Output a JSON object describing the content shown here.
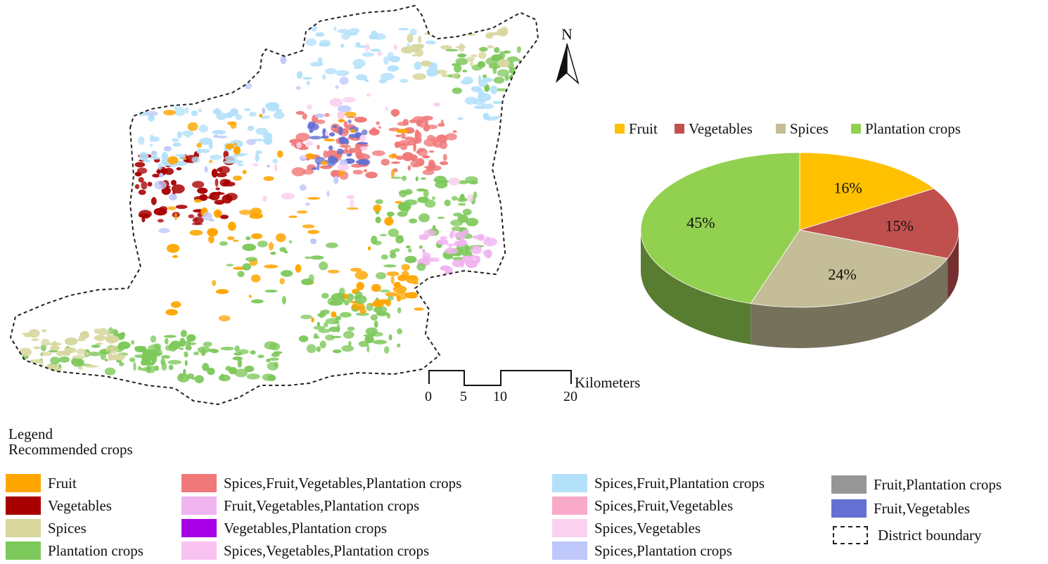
{
  "map": {
    "north_label": "N",
    "scale_unit": "Kilometers",
    "scale_ticks": [
      "0",
      "5",
      "10",
      "20"
    ]
  },
  "chart_data": {
    "type": "pie",
    "legend": [
      "Fruit",
      "Vegetables",
      "Spices",
      "Plantation crops"
    ],
    "legend_placement": "top",
    "slices": [
      {
        "label": "Fruit",
        "value": 16,
        "text": "16%",
        "color": "#ffc000"
      },
      {
        "label": "Vegetables",
        "value": 15,
        "text": "15%",
        "color": "#c0504d"
      },
      {
        "label": "Spices",
        "value": 24,
        "text": "24%",
        "color": "#c4bd97"
      },
      {
        "label": "Plantation crops",
        "value": 45,
        "text": "45%",
        "color": "#92d050"
      }
    ]
  },
  "legend": {
    "title": "Legend",
    "subtitle": "Recommended crops",
    "items": [
      {
        "label": "Fruit",
        "color": "#ffa500"
      },
      {
        "label": "Vegetables",
        "color": "#a80000"
      },
      {
        "label": "Spices",
        "color": "#d7d79e"
      },
      {
        "label": "Plantation crops",
        "color": "#7dc85a"
      },
      {
        "label": "Spices,Fruit,Vegetables,Plantation crops",
        "color": "#f07878"
      },
      {
        "label": "Fruit,Vegetables,Plantation crops",
        "color": "#f0b4f0"
      },
      {
        "label": "Vegetables,Plantation crops",
        "color": "#a800e6"
      },
      {
        "label": "Spices,Vegetables,Plantation crops",
        "color": "#f8c3f0"
      },
      {
        "label": "Spices,Fruit,Plantation crops",
        "color": "#b4e1fa"
      },
      {
        "label": "Spices,Fruit,Vegetables",
        "color": "#f8aac8"
      },
      {
        "label": "Spices,Vegetables",
        "color": "#fad2f0"
      },
      {
        "label": "Spices,Plantation crops",
        "color": "#bec8fa"
      },
      {
        "label": "Fruit,Plantation crops",
        "color": "#969696"
      },
      {
        "label": "Fruit,Vegetables",
        "color": "#6470d2"
      },
      {
        "label": "District boundary",
        "color": "#222222"
      }
    ]
  }
}
